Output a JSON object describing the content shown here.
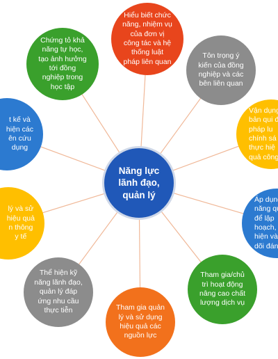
{
  "diagram": {
    "link_color": "#f0b898",
    "center": {
      "label": "Năng lực\nlãnh đạo,\nquản lý",
      "color": "#2058b8"
    },
    "nodes": [
      {
        "id": "top",
        "label": "Hiểu biết chức\nnăng, nhiệm vụ\ncủa đơn vị\ncông tác và hệ\nthống luật\npháp liên quan",
        "color": "#e8451c"
      },
      {
        "id": "top-right",
        "label": "Tôn trọng ý\nkiến của đồng\nnghiệp và các\nbên liên quan",
        "color": "#8c8c8c"
      },
      {
        "id": "right-upper",
        "label": "Vận dụng\nbản qui đ\npháp lu\nchính sá\nthực hiệ\nquả công",
        "color": "#ffbf00"
      },
      {
        "id": "right-lower",
        "label": "Áp dụng\nnăng qu\nđể lập\nhoạch,\nhiện và\ndõi đánh",
        "color": "#2c7ad0"
      },
      {
        "id": "bottom-right",
        "label": "Tham gia/chủ\ntrì hoạt động\nnâng cao chất\nlượng dịch vụ",
        "color": "#3aa02c"
      },
      {
        "id": "bottom",
        "label": "Tham gia quản\nlý và sử dụng\nhiệu quả các\nnguồn lực",
        "color": "#f2711c"
      },
      {
        "id": "bottom-left",
        "label": "Thể hiện kỹ\nnăng lãnh đạo,\nquản lý đáp\nứng nhu cầu\nthực tiễn",
        "color": "#8c8c8c"
      },
      {
        "id": "left-lower",
        "label": "lý và sử\nhiệu quả\nn thông\ny tế",
        "color": "#ffbf00"
      },
      {
        "id": "left-upper",
        "label": "t kế và\nhiện các\nên cứu\ndụng",
        "color": "#2c7ad0"
      },
      {
        "id": "top-left",
        "label": "Chứng tỏ khả\nnăng tự học,\ntạo ảnh hưởng\ntới đồng\nnghiệp trong\nhọc tập",
        "color": "#3aa02c"
      }
    ]
  }
}
